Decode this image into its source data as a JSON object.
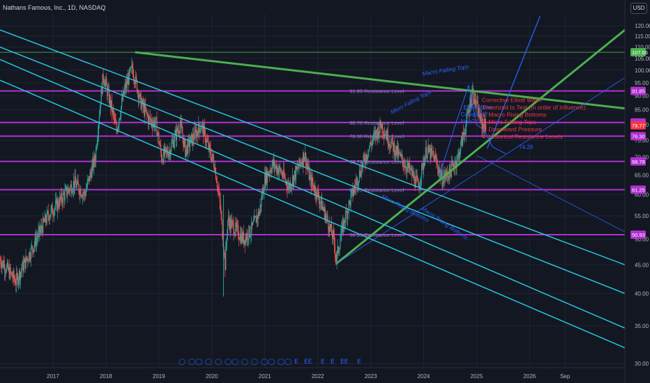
{
  "header": {
    "title": "Nathans Famous, Inc., 1D, NASDAQ",
    "currency": "USD"
  },
  "colors": {
    "background": "#131722",
    "resistance": "#b030d0",
    "channel": "#26c6da",
    "macro_falling": "#4caf50",
    "macro_rising": "#4caf50",
    "projection": "#2962ff",
    "candle_up": "#26a69a",
    "candle_down": "#ef5350",
    "label_text": "#7b8ab8",
    "note_text": "#f23645",
    "wave_text": "#2962ff"
  },
  "chart_data": {
    "type": "candlestick",
    "y_axis": {
      "min": 30,
      "max": 120,
      "ticks": [
        30.0,
        35.0,
        40.0,
        45.0,
        50.0,
        55.0,
        60.0,
        65.0,
        70.0,
        75.0,
        80.0,
        85.0,
        90.0,
        95.0,
        100.0,
        105.0,
        110.0,
        115.0,
        120.0
      ],
      "tick_labels": [
        "30.00",
        "35.00",
        "40.00",
        "45.00",
        "50.00",
        "55.00",
        "60.00",
        "65.00",
        "70.00",
        "75.00",
        "80.00",
        "85.00",
        "90.00",
        "95.00",
        "100.00",
        "105.00",
        "110.00",
        "115.00",
        "120.00"
      ],
      "scale": "log"
    },
    "x_axis": {
      "labels": [
        "2017",
        "2018",
        "2019",
        "2020",
        "2021",
        "2022",
        "2023",
        "2024",
        "2025",
        "2026",
        "Sep"
      ],
      "years": [
        2017,
        2018,
        2019,
        2020,
        2021,
        2022,
        2023,
        2024,
        2025,
        2026,
        2026.67
      ]
    },
    "resistance_levels": [
      {
        "value": 91.85,
        "label": "91.85 Resistance Level",
        "badge": "91.85"
      },
      {
        "value": 80.7,
        "label": "80.70 Resistance Level",
        "badge": "80.70"
      },
      {
        "value": 76.3,
        "label": "76.30 Resistance Level",
        "badge": "76.30"
      },
      {
        "value": 68.78,
        "label": "68.78 Resistance Level",
        "badge": "68.78"
      },
      {
        "value": 61.25,
        "label": "61.25 Resistance Level",
        "badge": "61.25"
      },
      {
        "value": 50.93,
        "label": "50.93 Resistance Level",
        "badge": "50.93"
      }
    ],
    "extra_badges": [
      {
        "value": 107.66,
        "text": "107.66",
        "kind": "high"
      },
      {
        "value": 79.77,
        "text": "79.77",
        "kind": "last"
      }
    ],
    "trendlines": [
      {
        "name": "Macro Falling Tops",
        "kind": "macro_falling",
        "p1": [
          2018.55,
          107.66
        ],
        "p2": [
          2027.8,
          85.5
        ]
      },
      {
        "name": "Macro Rising Bottoms",
        "kind": "macro_rising",
        "p1": [
          2022.35,
          45.2
        ],
        "p2": [
          2027.8,
          118
        ]
      },
      {
        "name": "Micro Rising Bottoms",
        "kind": "projection_thin",
        "p1": [
          2022.35,
          45.2
        ],
        "p2": [
          2027.8,
          97
        ]
      },
      {
        "name": "",
        "kind": "projection_up",
        "p1": [
          2025.2,
          72.5
        ],
        "p2": [
          2026.2,
          125
        ]
      },
      {
        "name": "",
        "kind": "projection_thin",
        "p1": [
          2025.0,
          70.5
        ],
        "p2": [
          2027.8,
          51.5
        ]
      },
      {
        "name": "",
        "kind": "channel",
        "p1": [
          2016.0,
          118
        ],
        "p2": [
          2027.8,
          45
        ]
      },
      {
        "name": "",
        "kind": "channel",
        "p1": [
          2016.0,
          110
        ],
        "p2": [
          2027.8,
          40
        ]
      },
      {
        "name": "",
        "kind": "channel",
        "p1": [
          2016.0,
          104.5
        ],
        "p2": [
          2027.8,
          34.7
        ]
      },
      {
        "name": "",
        "kind": "channel",
        "p1": [
          2016.0,
          96
        ],
        "p2": [
          2027.8,
          32
        ]
      }
    ],
    "annotations": [
      {
        "text": "Macro Falling Tops",
        "kind": "wave",
        "at": [
          2023.98,
          97.8
        ],
        "rotate": 9
      },
      {
        "text": "Micro Falling Tops",
        "kind": "wave",
        "at": [
          2023.4,
          83.5
        ],
        "rotate": 28
      },
      {
        "text": "Micro Rising Bottoms",
        "kind": "wave",
        "at": [
          2023.2,
          59.3
        ],
        "rotate": -28
      },
      {
        "text": "Macro Rising Bottoms",
        "kind": "wave",
        "at": [
          2023.95,
          56.5
        ],
        "rotate": -34
      },
      {
        "text": "Elliott Wave",
        "kind": "wave",
        "at": [
          2024.75,
          85.2
        ],
        "rotate": 0
      },
      {
        "text": "Complete?",
        "kind": "wave",
        "at": [
          2024.7,
          82.8
        ],
        "rotate": 0
      },
      {
        "text": "Now?",
        "kind": "wave",
        "at": [
          2024.7,
          80.5
        ],
        "rotate": 0
      },
      {
        "text": "74.28",
        "kind": "wave",
        "at": [
          2025.8,
          72.4
        ],
        "rotate": 0
      }
    ],
    "note": {
      "lines": [
        "Corrective Elliott Wave",
        "Theorized to Test (In order of influence):",
        "1. Macro Rising Bottoms",
        "2. Micro Falling Tops",
        "3. Downward Pressure",
        "4. Historical Resistance Levels"
      ],
      "at": [
        2025.1,
        87.8
      ]
    },
    "price_path": [
      [
        2016.0,
        46
      ],
      [
        2016.3,
        42
      ],
      [
        2016.6,
        48
      ],
      [
        2016.9,
        55
      ],
      [
        2017.1,
        58
      ],
      [
        2017.4,
        63
      ],
      [
        2017.6,
        60
      ],
      [
        2017.8,
        70
      ],
      [
        2017.95,
        98
      ],
      [
        2018.1,
        86
      ],
      [
        2018.2,
        78
      ],
      [
        2018.35,
        92
      ],
      [
        2018.5,
        101
      ],
      [
        2018.65,
        88
      ],
      [
        2018.8,
        82
      ],
      [
        2018.95,
        80
      ],
      [
        2019.05,
        70
      ],
      [
        2019.2,
        72
      ],
      [
        2019.4,
        80
      ],
      [
        2019.5,
        72
      ],
      [
        2019.65,
        76
      ],
      [
        2019.8,
        80
      ],
      [
        2019.95,
        72
      ],
      [
        2020.05,
        68
      ],
      [
        2020.15,
        58
      ],
      [
        2020.25,
        45
      ],
      [
        2020.3,
        54
      ],
      [
        2020.45,
        52
      ],
      [
        2020.6,
        50
      ],
      [
        2020.75,
        52
      ],
      [
        2020.9,
        56
      ],
      [
        2021.0,
        64
      ],
      [
        2021.15,
        68
      ],
      [
        2021.3,
        66
      ],
      [
        2021.45,
        62
      ],
      [
        2021.6,
        66
      ],
      [
        2021.75,
        71
      ],
      [
        2021.85,
        64
      ],
      [
        2022.0,
        60
      ],
      [
        2022.15,
        55
      ],
      [
        2022.3,
        50
      ],
      [
        2022.35,
        46
      ],
      [
        2022.5,
        54
      ],
      [
        2022.7,
        62
      ],
      [
        2022.85,
        68
      ],
      [
        2023.0,
        74
      ],
      [
        2023.2,
        80
      ],
      [
        2023.35,
        75
      ],
      [
        2023.55,
        70
      ],
      [
        2023.75,
        66
      ],
      [
        2023.9,
        62
      ],
      [
        2024.05,
        72
      ],
      [
        2024.2,
        70
      ],
      [
        2024.35,
        64
      ],
      [
        2024.5,
        66
      ],
      [
        2024.65,
        70
      ],
      [
        2024.8,
        80
      ],
      [
        2024.92,
        92
      ],
      [
        2025.0,
        86
      ],
      [
        2025.1,
        80
      ],
      [
        2025.18,
        79.77
      ]
    ],
    "bottom_markers": [
      "◯",
      "◯◯",
      "◯",
      "◯",
      "◯◯",
      "◯",
      "◯",
      "◯◯",
      "◯◯",
      "E",
      "EE",
      "E",
      "E",
      "EE",
      "E"
    ]
  }
}
